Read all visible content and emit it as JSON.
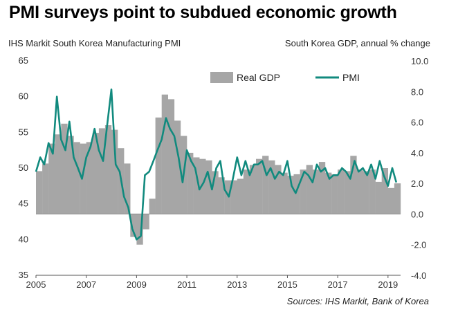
{
  "chart_data": {
    "type": "bar+line",
    "title": "PMI surveys point to subdued economic growth",
    "left_axis_title": "IHS Markit South Korea Manufacturing PMI",
    "right_axis_title": "South Korea GDP, annual % change",
    "source": "Sources: IHS Markit, Bank of Korea",
    "left_axis": {
      "ylim": [
        35,
        65
      ],
      "ticks": [
        "65",
        "60",
        "55",
        "50",
        "45",
        "40",
        "35"
      ]
    },
    "right_axis": {
      "ylim": [
        -4.0,
        10.0
      ],
      "ticks": [
        "10.0",
        "8.0",
        "6.0",
        "4.0",
        "2.0",
        "0.0",
        "-2.0",
        "-4.0"
      ]
    },
    "x_axis": {
      "range": [
        2005,
        2019.5
      ],
      "ticks": [
        "2005",
        "2007",
        "2009",
        "2011",
        "2013",
        "2015",
        "2017",
        "2019"
      ]
    },
    "legend": {
      "position": "top-right",
      "items": [
        "Real GDP",
        "PMI"
      ]
    },
    "colors": {
      "gdp_bars": "#a6a6a6",
      "pmi_line": "#118a7e"
    },
    "series": [
      {
        "name": "Real GDP",
        "kind": "bar",
        "axis": "right",
        "x": [
          2005.0,
          2005.25,
          2005.5,
          2005.75,
          2006.0,
          2006.25,
          2006.5,
          2006.75,
          2007.0,
          2007.25,
          2007.5,
          2007.75,
          2008.0,
          2008.25,
          2008.5,
          2008.75,
          2009.0,
          2009.25,
          2009.5,
          2009.75,
          2010.0,
          2010.25,
          2010.5,
          2010.75,
          2011.0,
          2011.25,
          2011.5,
          2011.75,
          2012.0,
          2012.25,
          2012.5,
          2012.75,
          2013.0,
          2013.25,
          2013.5,
          2013.75,
          2014.0,
          2014.25,
          2014.5,
          2014.75,
          2015.0,
          2015.25,
          2015.5,
          2015.75,
          2016.0,
          2016.25,
          2016.5,
          2016.75,
          2017.0,
          2017.25,
          2017.5,
          2017.75,
          2018.0,
          2018.25,
          2018.5,
          2018.75,
          2019.0,
          2019.25
        ],
        "values": [
          2.8,
          3.3,
          4.6,
          5.2,
          5.9,
          5.1,
          4.7,
          4.6,
          4.7,
          5.3,
          5.6,
          5.8,
          5.5,
          4.3,
          3.3,
          -1.5,
          -2.0,
          -1.0,
          1.0,
          6.3,
          7.8,
          7.5,
          6.1,
          5.1,
          4.0,
          3.7,
          3.6,
          3.5,
          2.8,
          2.4,
          2.2,
          2.2,
          2.3,
          2.9,
          3.2,
          3.6,
          3.8,
          3.5,
          3.2,
          2.7,
          2.5,
          2.6,
          2.9,
          3.2,
          2.9,
          3.4,
          2.7,
          2.6,
          2.9,
          2.8,
          3.8,
          2.9,
          2.8,
          2.9,
          2.1,
          3.0,
          1.7,
          2.0
        ]
      },
      {
        "name": "PMI",
        "kind": "line",
        "axis": "left",
        "x": [
          2005.0,
          2005.17,
          2005.33,
          2005.5,
          2005.67,
          2005.83,
          2006.0,
          2006.17,
          2006.33,
          2006.5,
          2006.67,
          2006.83,
          2007.0,
          2007.17,
          2007.33,
          2007.5,
          2007.67,
          2007.83,
          2008.0,
          2008.17,
          2008.33,
          2008.5,
          2008.67,
          2008.83,
          2009.0,
          2009.17,
          2009.33,
          2009.5,
          2009.67,
          2009.83,
          2010.0,
          2010.17,
          2010.33,
          2010.5,
          2010.67,
          2010.83,
          2011.0,
          2011.17,
          2011.33,
          2011.5,
          2011.67,
          2011.83,
          2012.0,
          2012.17,
          2012.33,
          2012.5,
          2012.67,
          2012.83,
          2013.0,
          2013.17,
          2013.33,
          2013.5,
          2013.67,
          2013.83,
          2014.0,
          2014.17,
          2014.33,
          2014.5,
          2014.67,
          2014.83,
          2015.0,
          2015.17,
          2015.33,
          2015.5,
          2015.67,
          2015.83,
          2016.0,
          2016.17,
          2016.33,
          2016.5,
          2016.67,
          2016.83,
          2017.0,
          2017.17,
          2017.33,
          2017.5,
          2017.67,
          2017.83,
          2018.0,
          2018.17,
          2018.33,
          2018.5,
          2018.67,
          2018.83,
          2019.0,
          2019.17,
          2019.33
        ],
        "values": [
          49.5,
          51.5,
          50.5,
          53.5,
          52.0,
          60.0,
          54.0,
          52.5,
          56.5,
          51.5,
          50.0,
          48.5,
          51.5,
          53.0,
          55.5,
          52.5,
          51.0,
          56.0,
          61.0,
          50.5,
          49.5,
          46.0,
          44.5,
          41.5,
          40.0,
          40.5,
          49.0,
          49.5,
          51.0,
          52.5,
          54.0,
          57.0,
          55.5,
          54.5,
          51.5,
          48.0,
          52.5,
          51.0,
          50.0,
          47.0,
          48.0,
          49.5,
          47.0,
          50.0,
          51.0,
          47.0,
          46.0,
          48.5,
          51.5,
          49.0,
          51.0,
          49.0,
          50.5,
          50.5,
          51.0,
          49.0,
          50.0,
          48.5,
          49.5,
          49.0,
          51.0,
          47.5,
          46.5,
          48.0,
          49.5,
          49.0,
          48.0,
          50.5,
          49.5,
          50.0,
          48.5,
          49.0,
          49.0,
          50.0,
          49.5,
          48.5,
          51.0,
          49.5,
          50.0,
          49.0,
          50.5,
          48.5,
          51.0,
          49.0,
          47.5,
          50.0,
          48.0
        ]
      }
    ]
  }
}
